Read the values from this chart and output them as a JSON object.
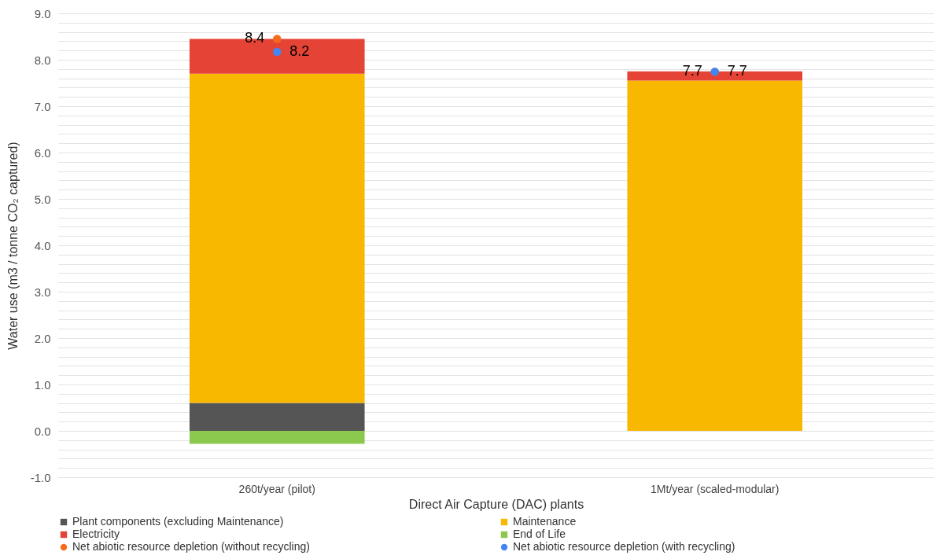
{
  "chart_data": {
    "type": "bar",
    "stacked": true,
    "xlabel": "Direct Air Capture (DAC) plants",
    "ylabel": "Water use (m3 / tonne CO₂ captured)",
    "categories": [
      "260t/year (pilot)",
      "1Mt/year (scaled-modular)"
    ],
    "series": [
      {
        "name": "Plant components (excluding Maintenance)",
        "color": "#555555",
        "values": [
          0.6,
          0
        ]
      },
      {
        "name": "Maintenance",
        "color": "#f9b800",
        "values": [
          7.1,
          7.55
        ]
      },
      {
        "name": "Electricity",
        "color": "#e54335",
        "values": [
          0.75,
          0.2
        ]
      },
      {
        "name": "End of Life",
        "color": "#8bc94e",
        "values": [
          -0.28,
          0
        ]
      },
      {
        "name": "Net abiotic resource depletion (without recycling)",
        "type": "scatter",
        "color": "#f56a1c",
        "x": [
          "260t/year (pilot)",
          "1Mt/year (scaled-modular)"
        ],
        "values": [
          8.45,
          7.74
        ],
        "value_labels": [
          "8.4",
          "7.7"
        ]
      },
      {
        "name": "Net abiotic resource depletion (with recycling)",
        "type": "scatter",
        "color": "#4285f4",
        "x": [
          "260t/year (pilot)",
          "1Mt/year (scaled-modular)"
        ],
        "values": [
          8.17,
          7.74
        ],
        "value_labels": [
          "8.2",
          "7.7"
        ]
      }
    ],
    "ylim": [
      -1,
      9
    ],
    "yticks": [
      {
        "value": -1,
        "label": "-1.0"
      },
      {
        "value": -0.8,
        "label": null
      },
      {
        "value": -0.6,
        "label": null
      },
      {
        "value": -0.4,
        "label": null
      },
      {
        "value": -0.2,
        "label": null
      },
      {
        "value": 0,
        "label": "0.0"
      },
      {
        "value": 0.2,
        "label": null
      },
      {
        "value": 0.4,
        "label": null
      },
      {
        "value": 0.6,
        "label": null
      },
      {
        "value": 0.8,
        "label": null
      },
      {
        "value": 1,
        "label": "1.0"
      },
      {
        "value": 1.2,
        "label": null
      },
      {
        "value": 1.4,
        "label": null
      },
      {
        "value": 1.6,
        "label": null
      },
      {
        "value": 1.8,
        "label": null
      },
      {
        "value": 2,
        "label": "2.0"
      },
      {
        "value": 2.2,
        "label": null
      },
      {
        "value": 2.4,
        "label": null
      },
      {
        "value": 2.6,
        "label": null
      },
      {
        "value": 2.8,
        "label": null
      },
      {
        "value": 3,
        "label": "3.0"
      },
      {
        "value": 3.2,
        "label": null
      },
      {
        "value": 3.4,
        "label": null
      },
      {
        "value": 3.6,
        "label": null
      },
      {
        "value": 3.8,
        "label": null
      },
      {
        "value": 4,
        "label": "4.0"
      },
      {
        "value": 4.2,
        "label": null
      },
      {
        "value": 4.4,
        "label": null
      },
      {
        "value": 4.6,
        "label": null
      },
      {
        "value": 4.8,
        "label": null
      },
      {
        "value": 5,
        "label": "5.0"
      },
      {
        "value": 5.2,
        "label": null
      },
      {
        "value": 5.4,
        "label": null
      },
      {
        "value": 5.6,
        "label": null
      },
      {
        "value": 5.8,
        "label": null
      },
      {
        "value": 6,
        "label": "6.0"
      },
      {
        "value": 6.2,
        "label": null
      },
      {
        "value": 6.4,
        "label": null
      },
      {
        "value": 6.6,
        "label": null
      },
      {
        "value": 6.8,
        "label": null
      },
      {
        "value": 7,
        "label": "7.0"
      },
      {
        "value": 7.2,
        "label": null
      },
      {
        "value": 7.4,
        "label": null
      },
      {
        "value": 7.6,
        "label": null
      },
      {
        "value": 7.8,
        "label": null
      },
      {
        "value": 8,
        "label": "8.0"
      },
      {
        "value": 8.2,
        "label": null
      },
      {
        "value": 8.4,
        "label": null
      },
      {
        "value": 8.6,
        "label": null
      },
      {
        "value": 8.8,
        "label": null
      },
      {
        "value": 9,
        "label": "9.0"
      }
    ],
    "grid": true,
    "legend": "bottom"
  }
}
